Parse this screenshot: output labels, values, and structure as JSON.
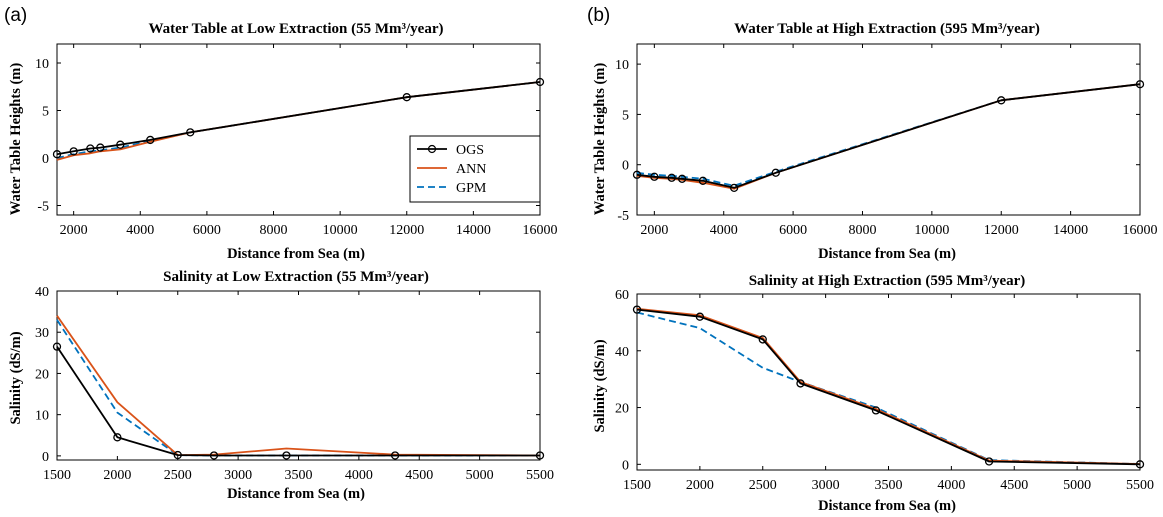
{
  "figure": {
    "labels": [
      "(a)",
      "(b)"
    ]
  },
  "chart_data": [
    {
      "type": "line",
      "title": "Water Table at Low Extraction (55 Mm³/year)",
      "xlabel": "Distance from Sea (m)",
      "ylabel": "Water Table Heights (m)",
      "xlim": [
        1500,
        16000
      ],
      "ylim": [
        -6,
        12
      ],
      "xticks": [
        2000,
        4000,
        6000,
        8000,
        10000,
        12000,
        14000,
        16000
      ],
      "yticks": [
        -5,
        0,
        5,
        10
      ],
      "grid": false,
      "legend": "right",
      "series": [
        {
          "name": "OGS",
          "color": "#000000",
          "style": "solid",
          "marker": "circle",
          "x": [
            1500,
            2000,
            2500,
            2800,
            3400,
            4300,
            5500,
            12000,
            16000
          ],
          "y": [
            0.4,
            0.7,
            1.0,
            1.1,
            1.4,
            1.9,
            2.7,
            6.4,
            8.0
          ]
        },
        {
          "name": "ANN",
          "color": "#d95319",
          "style": "solid",
          "marker": "none",
          "x": [
            1500,
            2000,
            2500,
            2800,
            3400,
            4300,
            5500,
            12000,
            16000
          ],
          "y": [
            -0.2,
            0.3,
            0.5,
            0.7,
            0.9,
            1.7,
            2.7,
            6.4,
            8.0
          ]
        },
        {
          "name": "GPM",
          "color": "#0072bd",
          "style": "dashed",
          "marker": "none",
          "x": [
            1500,
            2000,
            2500,
            2800,
            3400,
            4300,
            5500,
            12000,
            16000
          ],
          "y": [
            0.0,
            0.4,
            0.7,
            0.8,
            1.1,
            1.8,
            2.7,
            6.4,
            8.0
          ]
        }
      ]
    },
    {
      "type": "line",
      "title": "Salinity at Low Extraction (55 Mm³/year)",
      "xlabel": "Distance from Sea (m)",
      "ylabel": "Salinity (dS/m)",
      "xlim": [
        1500,
        5500
      ],
      "ylim": [
        -1,
        40
      ],
      "xticks": [
        1500,
        2000,
        2500,
        3000,
        3500,
        4000,
        4500,
        5000,
        5500
      ],
      "yticks": [
        0,
        10,
        20,
        30,
        40
      ],
      "grid": false,
      "series": [
        {
          "name": "OGS",
          "color": "#000000",
          "style": "solid",
          "marker": "circle",
          "x": [
            1500,
            2000,
            2500,
            2800,
            3400,
            4300,
            5500
          ],
          "y": [
            26.5,
            4.5,
            0.2,
            0.1,
            0.1,
            0.1,
            0.1
          ]
        },
        {
          "name": "ANN",
          "color": "#d95319",
          "style": "solid",
          "marker": "none",
          "x": [
            1500,
            2000,
            2500,
            2800,
            3400,
            4300,
            5500
          ],
          "y": [
            34.0,
            13.0,
            0.2,
            0.3,
            1.8,
            0.3,
            0.1
          ]
        },
        {
          "name": "GPM",
          "color": "#0072bd",
          "style": "dashed",
          "marker": "none",
          "x": [
            1500,
            2000,
            2500,
            2800,
            3400,
            4300,
            5500
          ],
          "y": [
            33.0,
            10.5,
            0.2,
            0.1,
            0.1,
            0.1,
            0.1
          ]
        }
      ]
    },
    {
      "type": "line",
      "title": "Water Table at High Extraction (595 Mm³/year)",
      "xlabel": "Distance from Sea (m)",
      "ylabel": "Water Table Heights (m)",
      "xlim": [
        1500,
        16000
      ],
      "ylim": [
        -5,
        12
      ],
      "xticks": [
        2000,
        4000,
        6000,
        8000,
        10000,
        12000,
        14000,
        16000
      ],
      "yticks": [
        -5,
        0,
        5,
        10
      ],
      "grid": false,
      "series": [
        {
          "name": "OGS",
          "color": "#000000",
          "style": "solid",
          "marker": "circle",
          "x": [
            1500,
            2000,
            2500,
            2800,
            3400,
            4300,
            5500,
            12000,
            16000
          ],
          "y": [
            -1.0,
            -1.2,
            -1.3,
            -1.4,
            -1.6,
            -2.3,
            -0.8,
            6.4,
            8.0
          ]
        },
        {
          "name": "ANN",
          "color": "#d95319",
          "style": "solid",
          "marker": "none",
          "x": [
            1500,
            2000,
            2500,
            2800,
            3400,
            4300,
            5500,
            12000,
            16000
          ],
          "y": [
            -1.1,
            -1.3,
            -1.4,
            -1.5,
            -1.8,
            -2.4,
            -0.8,
            6.4,
            8.0
          ]
        },
        {
          "name": "GPM",
          "color": "#0072bd",
          "style": "dashed",
          "marker": "none",
          "x": [
            1500,
            2000,
            2500,
            2800,
            3400,
            4300,
            5500,
            12000,
            16000
          ],
          "y": [
            -0.8,
            -1.0,
            -1.1,
            -1.2,
            -1.4,
            -2.1,
            -0.7,
            6.4,
            8.0
          ]
        }
      ]
    },
    {
      "type": "line",
      "title": "Salinity at High Extraction (595 Mm³/year)",
      "xlabel": "Distance from Sea (m)",
      "ylabel": "Salinity (dS/m)",
      "xlim": [
        1500,
        5500
      ],
      "ylim": [
        -2,
        60
      ],
      "xticks": [
        1500,
        2000,
        2500,
        3000,
        3500,
        4000,
        4500,
        5000,
        5500
      ],
      "yticks": [
        0,
        20,
        40,
        60
      ],
      "grid": false,
      "series": [
        {
          "name": "OGS",
          "color": "#000000",
          "style": "solid",
          "marker": "circle",
          "x": [
            1500,
            2000,
            2500,
            2800,
            3400,
            4300,
            5500
          ],
          "y": [
            54.5,
            52.0,
            44.0,
            28.5,
            19.0,
            1.0,
            0.0
          ]
        },
        {
          "name": "ANN",
          "color": "#d95319",
          "style": "solid",
          "marker": "none",
          "x": [
            1500,
            2000,
            2500,
            2800,
            3400,
            4300,
            5500
          ],
          "y": [
            54.8,
            52.5,
            44.5,
            29.0,
            19.5,
            1.3,
            0.1
          ]
        },
        {
          "name": "GPM",
          "color": "#0072bd",
          "style": "dashed",
          "marker": "none",
          "x": [
            1500,
            2000,
            2500,
            2800,
            3400,
            4300,
            5500
          ],
          "y": [
            53.5,
            48.0,
            34.0,
            29.0,
            20.0,
            1.5,
            0.1
          ]
        }
      ]
    }
  ]
}
